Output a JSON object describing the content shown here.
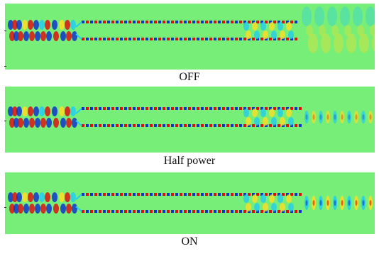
{
  "panels": [
    {
      "caption": "OFF",
      "state": "off"
    },
    {
      "caption": "Half power",
      "state": "half"
    },
    {
      "caption": "ON",
      "state": "on"
    }
  ],
  "colors": {
    "background": "#77ee77",
    "positive": "#dd1111",
    "negative": "#1133cc",
    "mid_positive": "#ffdd22",
    "mid_negative": "#22ccee"
  }
}
